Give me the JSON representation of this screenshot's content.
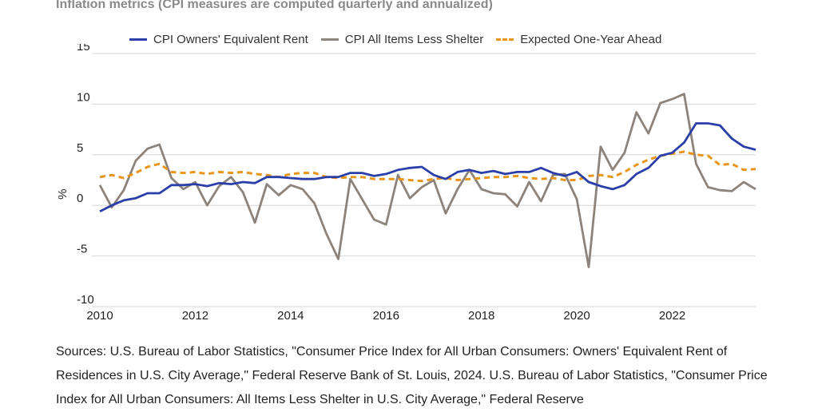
{
  "title": "Inflation metrics (CPI measures are computed quarterly and annualized)",
  "sources": "Sources: U.S. Bureau of Labor Statistics, \"Consumer Price Index for All Urban Consumers: Owners' Equivalent Rent of Residences in U.S. City Average,\" Federal Reserve Bank of St. Louis, 2024. U.S. Bureau of Labor Statistics, \"Consumer Price Index for All Urban Consumers: All Items Less Shelter in U.S. City Average,\" Federal Reserve",
  "chart_data": {
    "type": "line",
    "title": "Inflation metrics (CPI measures are computed quarterly and annualized)",
    "xlabel": "",
    "ylabel": "%",
    "xlim": [
      2010,
      2023.75
    ],
    "ylim": [
      -10,
      15
    ],
    "yticks": [
      -10,
      -5,
      0,
      5,
      10,
      15
    ],
    "yticklabels": [
      "-10",
      "-5",
      "0",
      "5",
      "10",
      "15"
    ],
    "xticks": [
      2010,
      2012,
      2014,
      2016,
      2018,
      2020,
      2022
    ],
    "xticklabels": [
      "2010",
      "2012",
      "2014",
      "2016",
      "2018",
      "2020",
      "2022"
    ],
    "grid": "horizontal",
    "legend_position": "top",
    "x": [
      2010,
      2010.25,
      2010.5,
      2010.75,
      2011,
      2011.25,
      2011.5,
      2011.75,
      2012,
      2012.25,
      2012.5,
      2012.75,
      2013,
      2013.25,
      2013.5,
      2013.75,
      2014,
      2014.25,
      2014.5,
      2014.75,
      2015,
      2015.25,
      2015.5,
      2015.75,
      2016,
      2016.25,
      2016.5,
      2016.75,
      2017,
      2017.25,
      2017.5,
      2017.75,
      2018,
      2018.25,
      2018.5,
      2018.75,
      2019,
      2019.25,
      2019.5,
      2019.75,
      2020,
      2020.25,
      2020.5,
      2020.75,
      2021,
      2021.25,
      2021.5,
      2021.75,
      2022,
      2022.25,
      2022.5,
      2022.75,
      2023,
      2023.25,
      2023.5,
      2023.75
    ],
    "series": [
      {
        "name": "CPI Owners' Equivalent Rent",
        "color": "#2b3fa8",
        "style": "solid",
        "values": [
          -0.6,
          0.0,
          0.5,
          0.7,
          1.2,
          1.2,
          2.0,
          2.0,
          2.1,
          1.9,
          2.2,
          2.1,
          2.3,
          2.2,
          2.8,
          2.8,
          2.7,
          2.6,
          2.6,
          2.8,
          2.8,
          3.2,
          3.2,
          2.9,
          3.1,
          3.5,
          3.7,
          3.8,
          3.0,
          2.6,
          3.3,
          3.5,
          3.2,
          3.4,
          3.1,
          3.3,
          3.3,
          3.7,
          3.2,
          2.9,
          3.3,
          2.3,
          1.9,
          1.6,
          2.0,
          3.1,
          3.7,
          4.9,
          5.2,
          6.2,
          8.1,
          8.1,
          7.9,
          6.6,
          5.8,
          5.5
        ]
      },
      {
        "name": "CPI All Items Less Shelter",
        "color": "#8c847c",
        "style": "solid",
        "values": [
          2.0,
          -0.2,
          1.5,
          4.4,
          5.6,
          6.0,
          2.7,
          1.6,
          2.3,
          0.0,
          1.9,
          2.8,
          1.3,
          -1.7,
          2.1,
          1.0,
          2.0,
          1.6,
          0.2,
          -2.8,
          -5.3,
          2.6,
          0.6,
          -1.4,
          -1.9,
          3.0,
          0.7,
          1.8,
          2.5,
          -0.8,
          1.6,
          3.5,
          1.6,
          1.2,
          1.1,
          -0.1,
          2.3,
          0.4,
          3.0,
          3.1,
          0.6,
          -6.1,
          5.8,
          3.5,
          5.2,
          9.2,
          7.1,
          10.1,
          10.5,
          11.0,
          4.1,
          1.8,
          1.5,
          1.4,
          2.3,
          1.6
        ]
      },
      {
        "name": "Expected One-Year Ahead",
        "color": "#e8951c",
        "style": "dashed",
        "values": [
          2.8,
          3.0,
          2.7,
          3.2,
          3.8,
          4.1,
          3.3,
          3.2,
          3.3,
          3.1,
          3.3,
          3.2,
          3.3,
          3.1,
          3.0,
          2.8,
          3.1,
          3.2,
          3.2,
          2.8,
          2.7,
          2.8,
          2.8,
          2.6,
          2.6,
          2.6,
          2.5,
          2.4,
          2.6,
          2.7,
          2.5,
          2.6,
          2.7,
          2.8,
          2.8,
          2.9,
          2.7,
          2.6,
          2.7,
          2.5,
          2.5,
          2.9,
          3.0,
          2.8,
          3.3,
          4.0,
          4.5,
          4.9,
          5.1,
          5.3,
          5.0,
          4.9,
          4.0,
          4.1,
          3.5,
          3.6
        ]
      }
    ]
  }
}
